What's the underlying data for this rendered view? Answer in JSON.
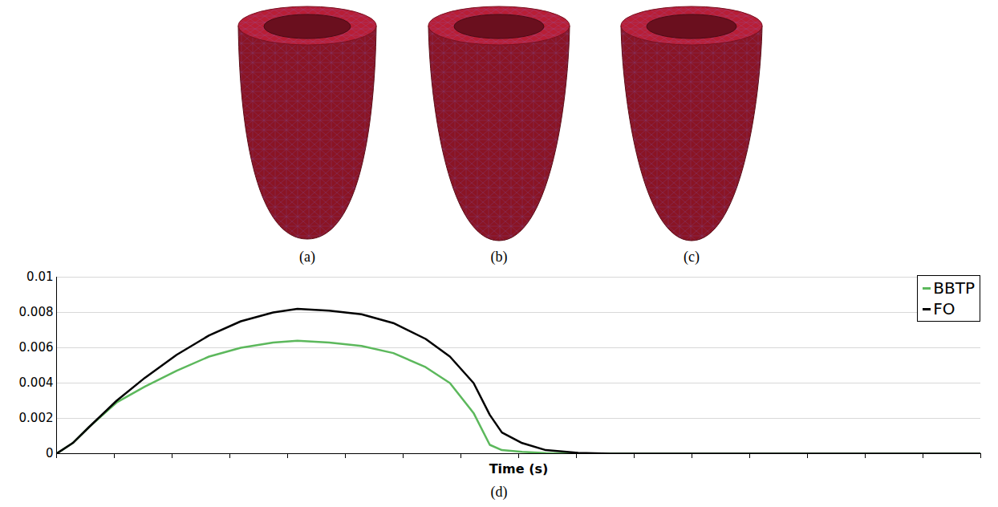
{
  "figure": {
    "panels": [
      "(a)",
      "(b)",
      "(c)"
    ]
  },
  "chart_data": {
    "type": "line",
    "caption": "(d)",
    "x_label": "Time (s)",
    "x": [
      0,
      0.28,
      0.56,
      1.04,
      1.53,
      2.08,
      2.64,
      3.19,
      3.75,
      4.17,
      4.72,
      5.28,
      5.83,
      6.39,
      6.81,
      7.22,
      7.5,
      7.71,
      8.06,
      8.47,
      9.03,
      9.58,
      16
    ],
    "series": [
      {
        "name": "BBTP",
        "color": "#5cb85c",
        "values": [
          0,
          0.0006,
          0.0015,
          0.0029,
          0.0038,
          0.0047,
          0.0055,
          0.006,
          0.0063,
          0.0064,
          0.0063,
          0.0061,
          0.0057,
          0.0049,
          0.004,
          0.0023,
          0.0005,
          0.0002,
          0.0001,
          3e-05,
          0,
          0,
          0
        ]
      },
      {
        "name": "FO",
        "color": "#000000",
        "values": [
          0,
          0.0006,
          0.0015,
          0.003,
          0.0043,
          0.0056,
          0.0067,
          0.0075,
          0.008,
          0.0082,
          0.0081,
          0.0079,
          0.0074,
          0.0065,
          0.0055,
          0.004,
          0.0022,
          0.0012,
          0.0006,
          0.0002,
          5e-05,
          0,
          0
        ]
      }
    ],
    "xlim": [
      0,
      16
    ],
    "xticks": [
      0,
      1,
      2,
      3,
      4,
      5,
      6,
      7,
      8,
      9,
      10,
      11,
      12,
      13,
      14,
      15,
      16
    ],
    "ylim": [
      0,
      0.01
    ],
    "yticks": [
      0,
      0.002,
      0.004,
      0.006,
      0.008,
      0.01
    ],
    "grid": true,
    "legend": "top-right",
    "tick_labels": "y"
  }
}
